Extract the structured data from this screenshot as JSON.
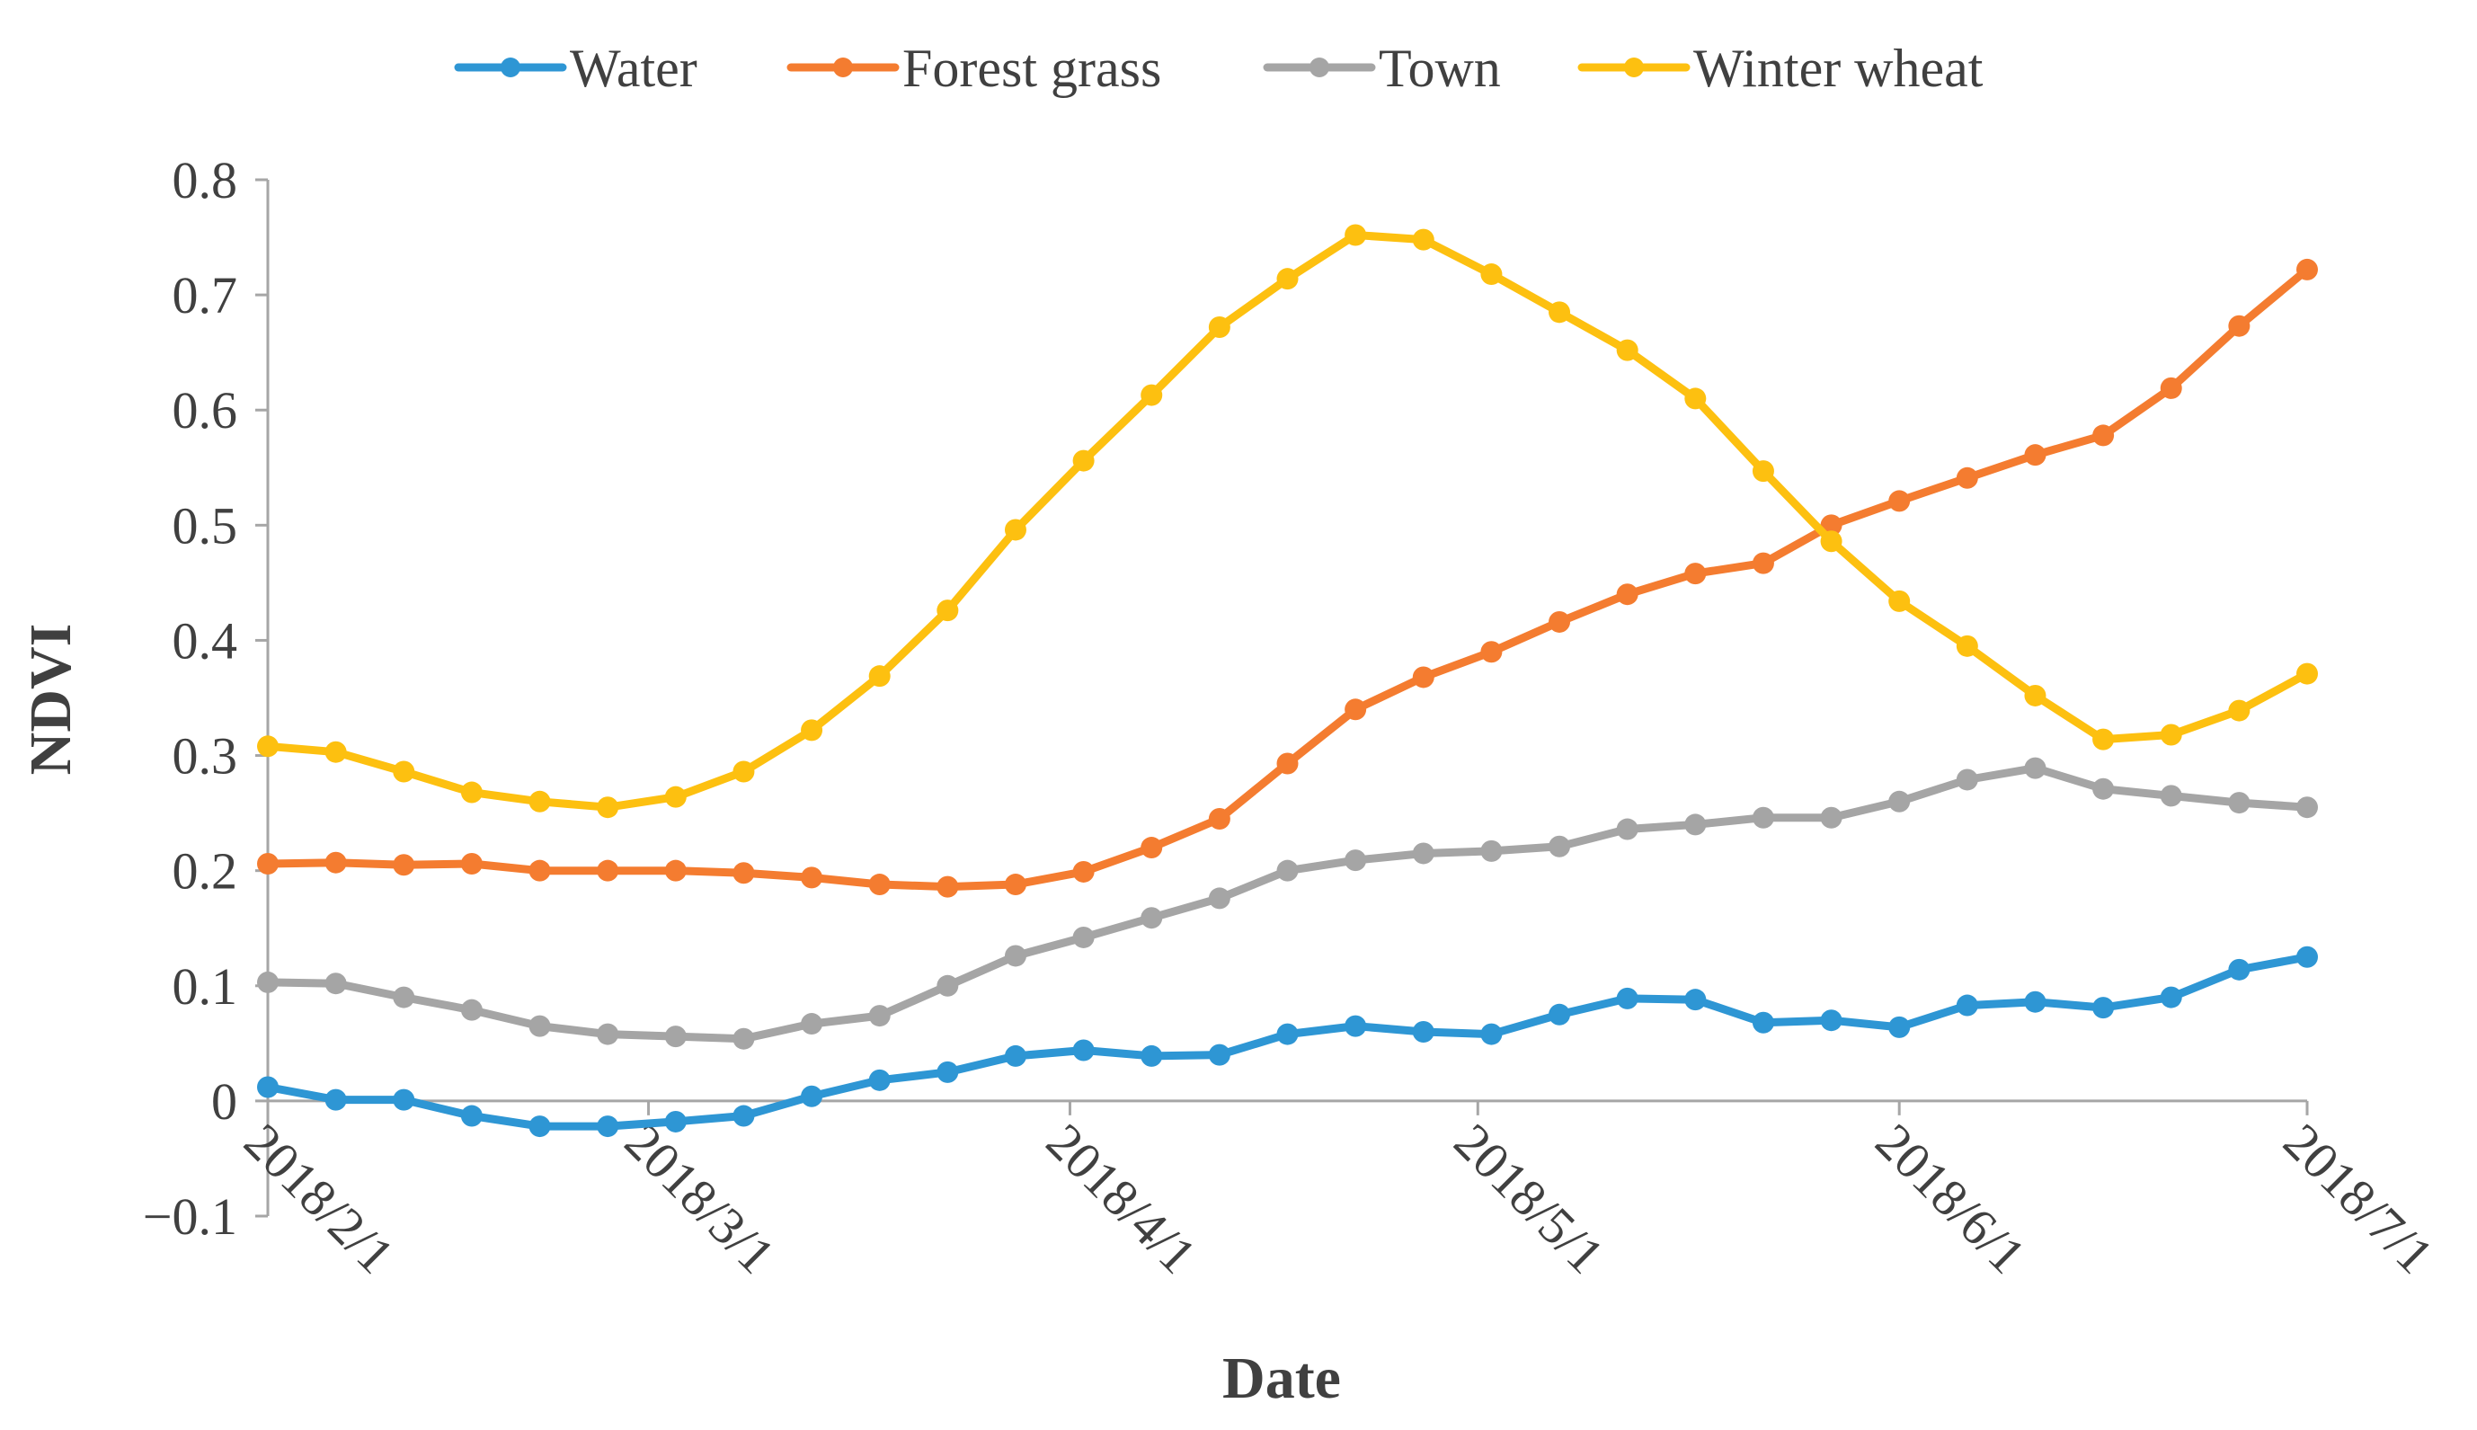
{
  "chart_data": {
    "type": "line",
    "title": "",
    "xlabel": "Date",
    "ylabel": "NDVI",
    "ylim": [
      -0.1,
      0.8
    ],
    "yticks": [
      -0.1,
      0,
      0.1,
      0.2,
      0.3,
      0.4,
      0.5,
      0.6,
      0.7,
      0.8
    ],
    "ytick_labels": [
      "−0.1",
      "0",
      "0.1",
      "0.2",
      "0.3",
      "0.4",
      "0.5",
      "0.6",
      "0.7",
      "0.8"
    ],
    "x_range_days": [
      0,
      150
    ],
    "xticks": [
      {
        "label": "2018/2/1",
        "day": 0
      },
      {
        "label": "2018/3/1",
        "day": 28
      },
      {
        "label": "2018/4/1",
        "day": 59
      },
      {
        "label": "2018/5/1",
        "day": 89
      },
      {
        "label": "2018/6/1",
        "day": 120
      },
      {
        "label": "2018/7/1",
        "day": 150
      }
    ],
    "x_days": [
      0,
      5,
      10,
      15,
      20,
      25,
      30,
      35,
      40,
      45,
      50,
      55,
      60,
      65,
      70,
      75,
      80,
      85,
      90,
      95,
      100,
      105,
      110,
      115,
      120,
      125,
      130,
      135,
      140,
      145,
      150
    ],
    "legend_position": "top-center",
    "grid": false,
    "series": [
      {
        "name": "Water",
        "color": "#2e96d4",
        "values": [
          0.012,
          0.001,
          0.001,
          -0.013,
          -0.022,
          -0.022,
          -0.018,
          -0.013,
          0.004,
          0.018,
          0.025,
          0.039,
          0.044,
          0.039,
          0.04,
          0.058,
          0.065,
          0.06,
          0.058,
          0.075,
          0.089,
          0.088,
          0.068,
          0.07,
          0.064,
          0.083,
          0.086,
          0.081,
          0.09,
          0.114,
          0.125
        ]
      },
      {
        "name": "Forest grass",
        "color": "#f47c30",
        "values": [
          0.206,
          0.207,
          0.205,
          0.206,
          0.2,
          0.2,
          0.2,
          0.198,
          0.194,
          0.188,
          0.186,
          0.188,
          0.199,
          0.22,
          0.245,
          0.293,
          0.34,
          0.368,
          0.39,
          0.416,
          0.44,
          0.458,
          0.467,
          0.5,
          0.521,
          0.541,
          0.561,
          0.578,
          0.619,
          0.673,
          0.722
        ]
      },
      {
        "name": "Town",
        "color": "#a5a5a5",
        "values": [
          0.103,
          0.102,
          0.09,
          0.079,
          0.065,
          0.058,
          0.056,
          0.054,
          0.067,
          0.074,
          0.1,
          0.126,
          0.142,
          0.159,
          0.176,
          0.2,
          0.209,
          0.215,
          0.217,
          0.221,
          0.236,
          0.24,
          0.246,
          0.246,
          0.26,
          0.279,
          0.289,
          0.271,
          0.265,
          0.259,
          0.255
        ]
      },
      {
        "name": "Winter wheat",
        "color": "#fdc010",
        "values": [
          0.308,
          0.303,
          0.286,
          0.268,
          0.26,
          0.255,
          0.264,
          0.286,
          0.322,
          0.369,
          0.426,
          0.496,
          0.556,
          0.613,
          0.672,
          0.714,
          0.752,
          0.748,
          0.718,
          0.685,
          0.652,
          0.61,
          0.547,
          0.486,
          0.434,
          0.395,
          0.352,
          0.314,
          0.318,
          0.339,
          0.371
        ]
      }
    ]
  }
}
